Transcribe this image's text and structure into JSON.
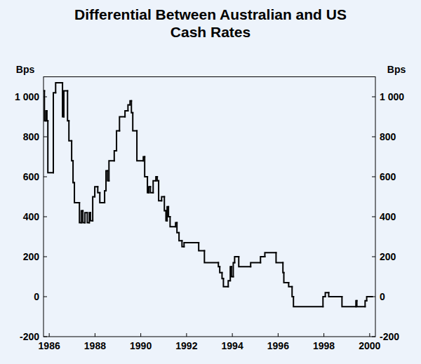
{
  "chart_data": {
    "type": "line",
    "title": "Differential Between Australian and US Cash Rates",
    "y_label": "Bps",
    "line_style": "step",
    "color": "#000000",
    "grid": false,
    "x": [
      1985.75,
      1985.79,
      1985.85,
      1985.9,
      1985.94,
      1986.18,
      1986.28,
      1986.58,
      1986.64,
      1986.8,
      1986.86,
      1986.98,
      1987.04,
      1987.1,
      1987.32,
      1987.4,
      1987.47,
      1987.56,
      1987.66,
      1987.75,
      1987.8,
      1987.9,
      1987.99,
      1988.12,
      1988.21,
      1988.42,
      1988.48,
      1988.55,
      1988.61,
      1988.84,
      1988.94,
      1989.07,
      1989.31,
      1989.44,
      1989.53,
      1989.59,
      1989.65,
      1989.83,
      1990.11,
      1990.17,
      1990.29,
      1990.35,
      1990.42,
      1990.54,
      1990.66,
      1990.72,
      1990.78,
      1990.91,
      1991.03,
      1991.1,
      1991.15,
      1991.21,
      1991.28,
      1991.52,
      1991.58,
      1991.67,
      1991.8,
      1991.89,
      1992.53,
      1992.78,
      1993.39,
      1993.45,
      1993.55,
      1993.61,
      1993.82,
      1993.91,
      1993.96,
      1994.04,
      1994.1,
      1994.28,
      1994.8,
      1995.23,
      1995.42,
      1995.91,
      1996.21,
      1996.25,
      1996.46,
      1996.61,
      1996.67,
      1997.96,
      1998.06,
      1998.21,
      1998.79,
      1999.4,
      1999.44,
      1999.8,
      1999.87,
      2000.11
    ],
    "values": [
      1030,
      880,
      930,
      880,
      620,
      1020,
      1070,
      900,
      1030,
      880,
      780,
      680,
      570,
      470,
      370,
      430,
      370,
      420,
      370,
      420,
      380,
      500,
      550,
      520,
      470,
      530,
      630,
      580,
      680,
      730,
      830,
      900,
      930,
      960,
      980,
      920,
      830,
      680,
      700,
      600,
      520,
      550,
      520,
      580,
      600,
      580,
      480,
      500,
      430,
      380,
      450,
      400,
      350,
      370,
      320,
      280,
      250,
      270,
      230,
      170,
      150,
      120,
      90,
      50,
      80,
      150,
      100,
      170,
      200,
      150,
      170,
      200,
      220,
      170,
      120,
      70,
      50,
      0,
      -50,
      0,
      20,
      0,
      -50,
      -20,
      -50,
      -20,
      0,
      0
    ],
    "xlim": [
      1985.75,
      2000.25
    ],
    "xticks": [
      1986,
      1988,
      1990,
      1992,
      1994,
      1996,
      1998,
      2000
    ],
    "ylim": [
      -200,
      1100
    ],
    "yticks": [
      -200,
      0,
      200,
      400,
      600,
      800,
      {
        "value": 1000,
        "label": "1 000"
      }
    ]
  }
}
